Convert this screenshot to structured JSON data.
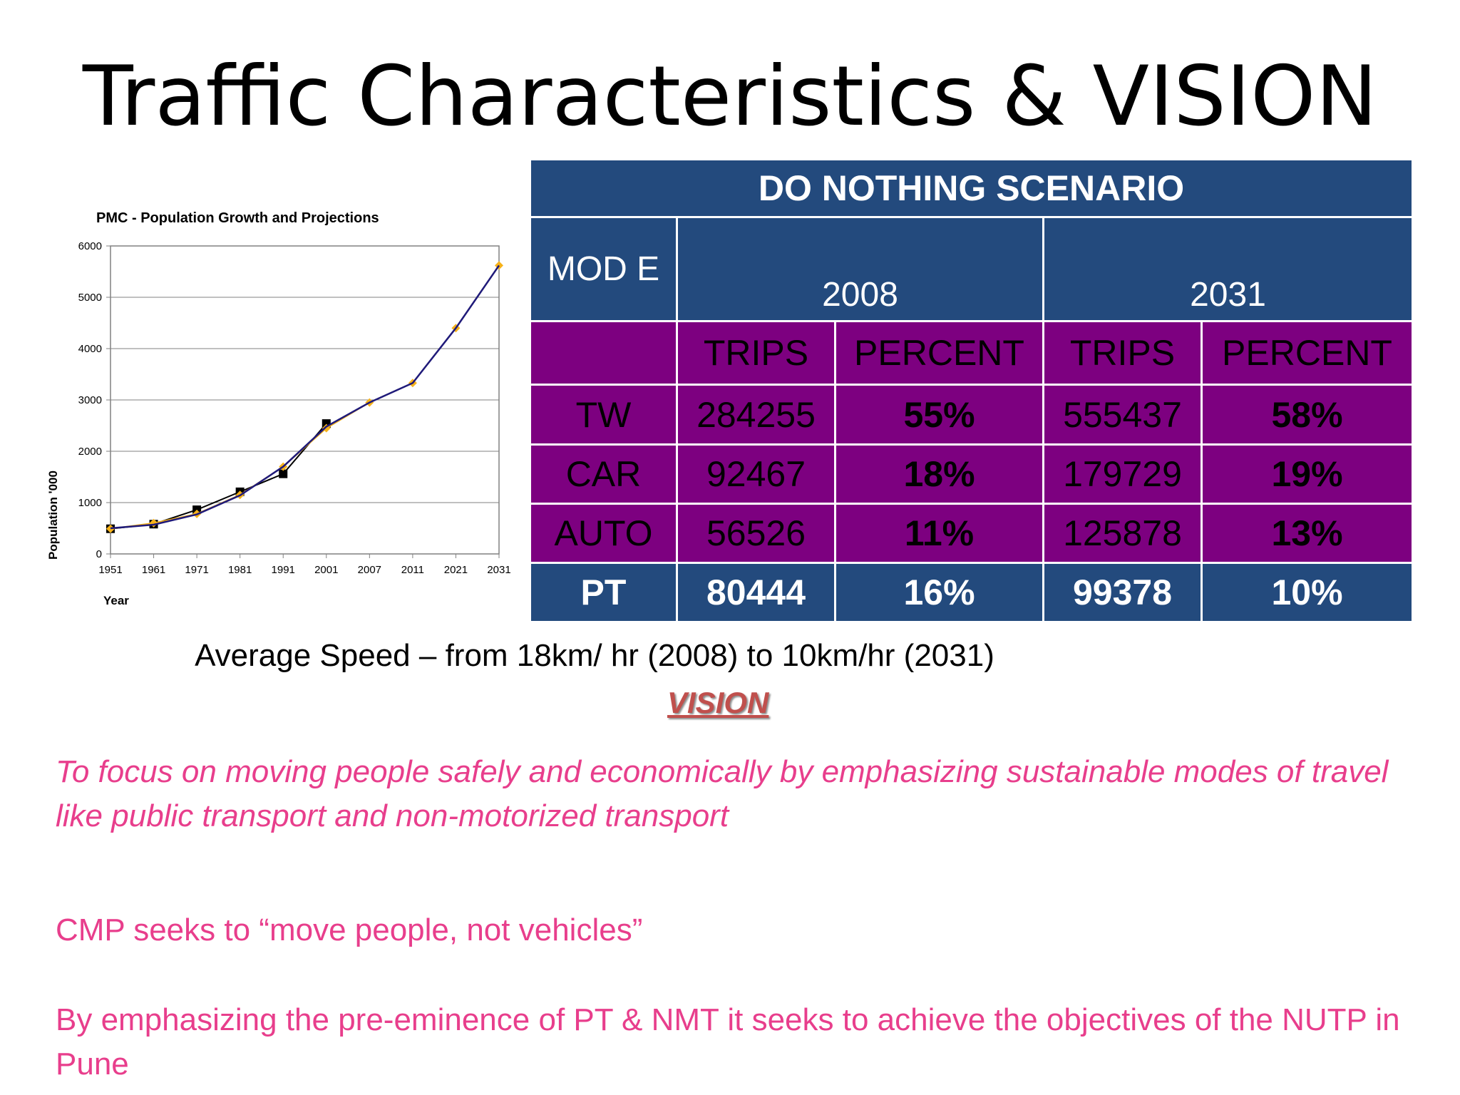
{
  "slide": {
    "title": "Traffic Characteristics & VISION",
    "speed_text": "Average Speed – from 18km/ hr (2008) to 10km/hr (2031)",
    "vision_heading": "VISION",
    "vision_text": "To focus on moving people safely and economically by emphasizing sustainable modes of travel like public transport and non-motorized transport",
    "cmp_text": "CMP seeks to “move people, not vehicles”",
    "nutp_text": "By emphasizing the pre-eminence of PT & NMT it seeks to achieve the objectives of the NUTP in Pune"
  },
  "table": {
    "title": "DO NOTHING SCENARIO",
    "mode_header": "MOD E",
    "year_2008": "2008",
    "year_2031": "2031",
    "trips_label": "TRIPS",
    "percent_label": "PERCENT",
    "rows": [
      {
        "mode": "TW",
        "trips_2008": "284255",
        "pct_2008": "55%",
        "trips_2031": "555437",
        "pct_2031": "58%"
      },
      {
        "mode": "CAR",
        "trips_2008": "92467",
        "pct_2008": "18%",
        "trips_2031": "179729",
        "pct_2031": "19%"
      },
      {
        "mode": "AUTO",
        "trips_2008": "56526",
        "pct_2008": "11%",
        "trips_2031": "125878",
        "pct_2031": "13%"
      },
      {
        "mode": "PT",
        "trips_2008": "80444",
        "pct_2008": "16%",
        "trips_2031": "99378",
        "pct_2031": "10%"
      }
    ],
    "colors": {
      "blue": "#234a7d",
      "purple": "#7d0080"
    }
  },
  "chart_data": {
    "type": "line",
    "title": "PMC - Population Growth and Projections",
    "xlabel": "Year",
    "ylabel": "Population '000",
    "ylim": [
      0,
      6000
    ],
    "yticks": [
      "0",
      "1000",
      "2000",
      "3000",
      "4000",
      "5000",
      "6000"
    ],
    "categories": [
      "1951",
      "1961",
      "1971",
      "1981",
      "1991",
      "2001",
      "2007",
      "2011",
      "2021",
      "2031"
    ],
    "grid": true,
    "series": [
      {
        "values": [
          490,
          580,
          860,
          1210,
          1560,
          2540,
          null,
          null,
          null,
          null
        ],
        "color": "#000000",
        "marker": "square"
      },
      {
        "values": [
          490,
          600,
          780,
          1150,
          1700,
          2450,
          2950,
          3330,
          4400,
          5620
        ],
        "color": "#f6b21a",
        "marker": "diamond"
      },
      {
        "values": [
          500,
          570,
          770,
          1140,
          1700,
          2480,
          2950,
          3330,
          4400,
          5620
        ],
        "color": "#1f1a7a",
        "marker": "none"
      }
    ]
  }
}
